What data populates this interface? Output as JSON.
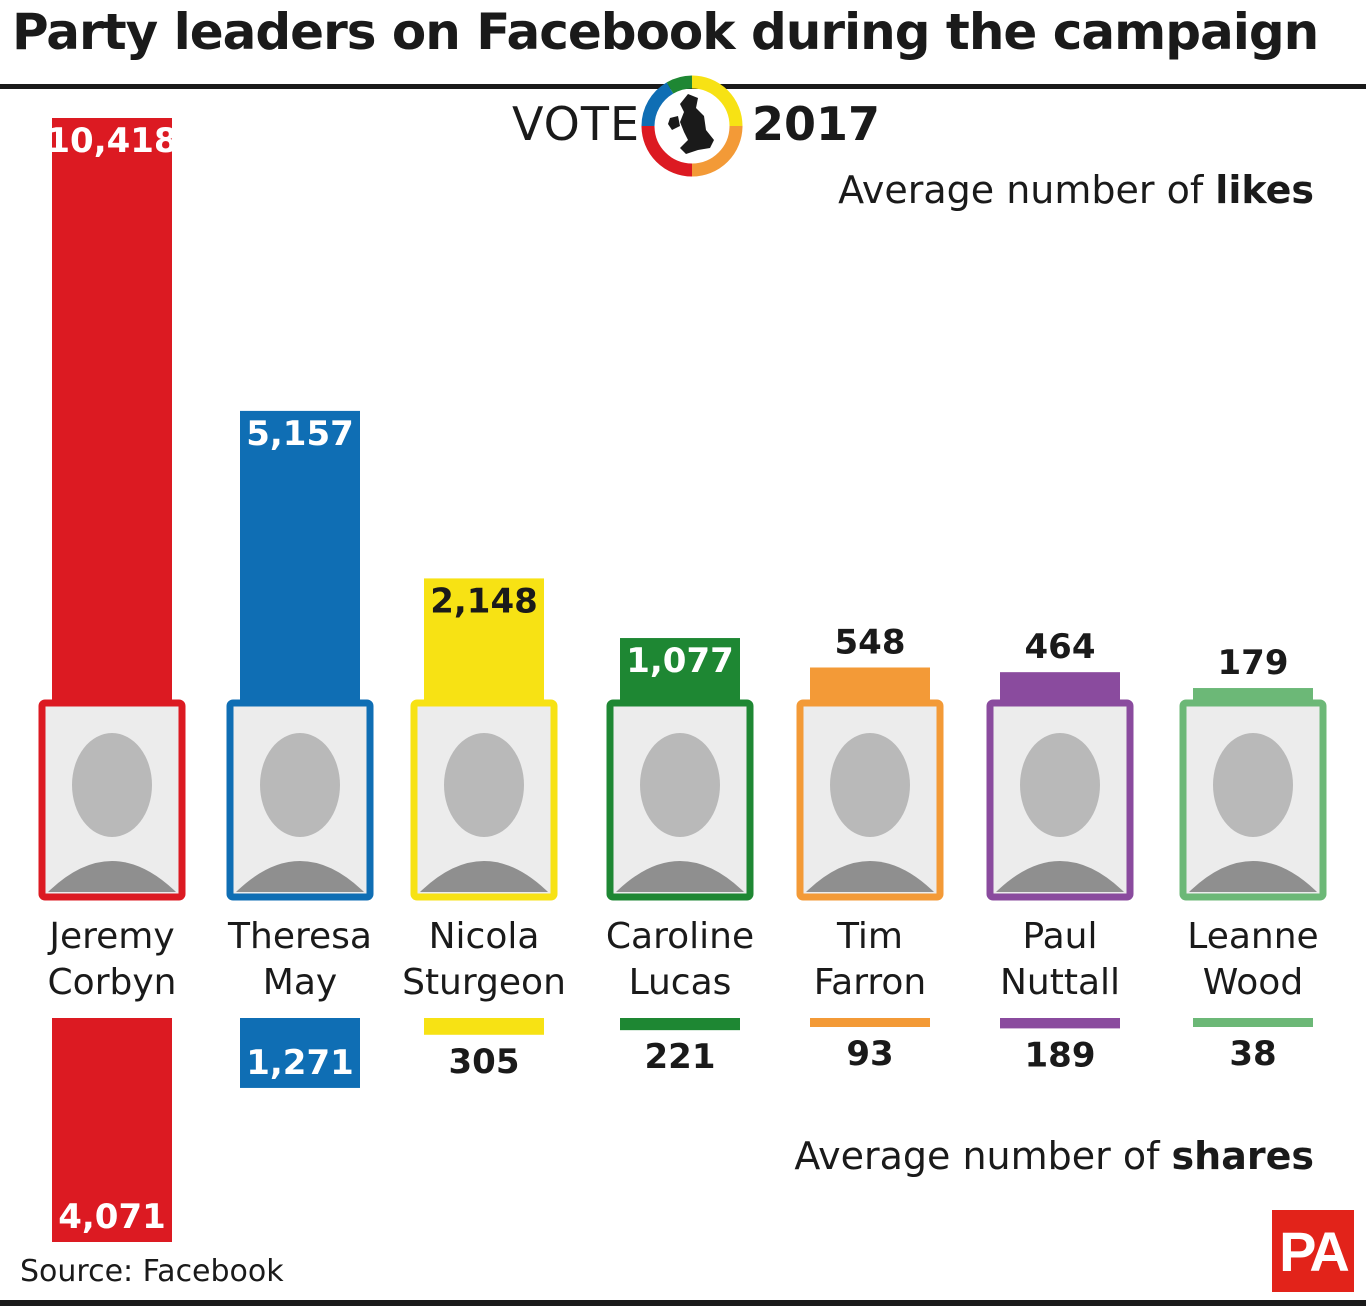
{
  "title": "Party leaders on Facebook during the campaign",
  "logo": {
    "word": "VOTE",
    "year": "2017"
  },
  "legend": {
    "likes_prefix": "Average number of ",
    "likes_bold": "likes",
    "shares_prefix": "Average number of ",
    "shares_bold": "shares"
  },
  "source": "Source: Facebook",
  "publisher_logo": "PA",
  "chart_data": {
    "type": "bar",
    "categories": [
      "Jeremy Corbyn",
      "Theresa May",
      "Nicola Sturgeon",
      "Caroline Lucas",
      "Tim Farron",
      "Paul Nuttall",
      "Leanne Wood"
    ],
    "category_lines": [
      [
        "Jeremy",
        "Corbyn"
      ],
      [
        "Theresa",
        "May"
      ],
      [
        "Nicola",
        "Sturgeon"
      ],
      [
        "Caroline",
        "Lucas"
      ],
      [
        "Tim",
        "Farron"
      ],
      [
        "Paul",
        "Nuttall"
      ],
      [
        "Leanne",
        "Wood"
      ]
    ],
    "colors": [
      "#dc1a22",
      "#0f6eb4",
      "#f7e214",
      "#1e8733",
      "#f39a37",
      "#8a4b9e",
      "#6cb877"
    ],
    "series": [
      {
        "name": "Average number of likes",
        "values": [
          10418,
          5157,
          2148,
          1077,
          548,
          464,
          179
        ],
        "labels": [
          "10,418",
          "5,157",
          "2,148",
          "1,077",
          "548",
          "464",
          "179"
        ]
      },
      {
        "name": "Average number of shares",
        "values": [
          4071,
          1271,
          305,
          221,
          93,
          189,
          38
        ],
        "labels": [
          "4,071",
          "1,271",
          "305",
          "221",
          "93",
          "189",
          "38"
        ]
      }
    ],
    "icons": [
      "portrait-icon"
    ]
  }
}
